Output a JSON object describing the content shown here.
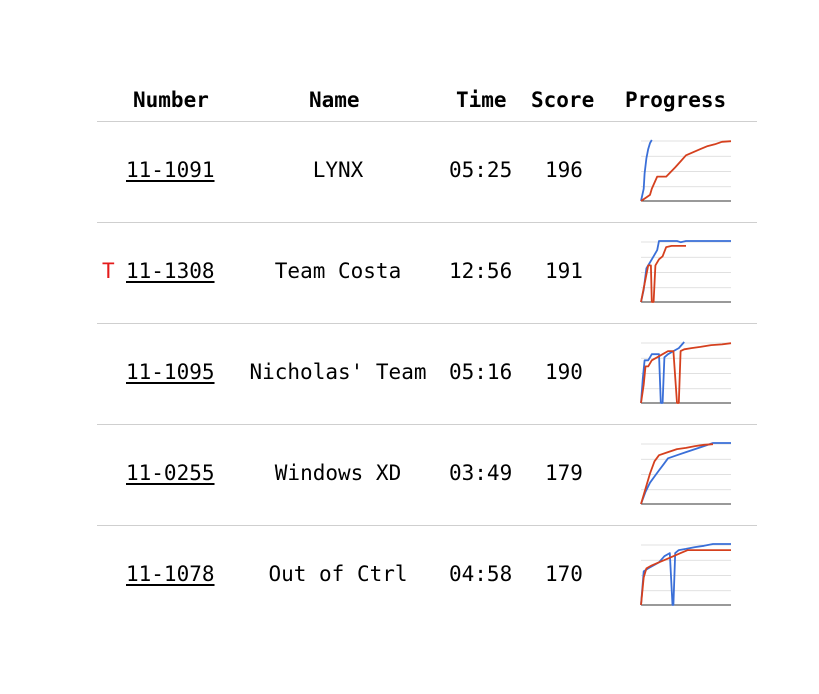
{
  "header": {
    "number": "Number",
    "name": "Name",
    "time": "Time",
    "score": "Score",
    "progress": "Progress"
  },
  "colors": {
    "series_a": "#3a6fd8",
    "series_b": "#d5401e",
    "flag": "#e41b1b",
    "grid": "#d6d6d6"
  },
  "rows": [
    {
      "flag": "",
      "number": "11-1091",
      "name": "LYNX",
      "time": "05:25",
      "score": "196"
    },
    {
      "flag": "T",
      "number": "11-1308",
      "name": "Team Costa",
      "time": "12:56",
      "score": "191"
    },
    {
      "flag": "",
      "number": "11-1095",
      "name": "Nicholas' Team",
      "time": "05:16",
      "score": "190"
    },
    {
      "flag": "",
      "number": "11-0255",
      "name": "Windows XD",
      "time": "03:49",
      "score": "179"
    },
    {
      "flag": "",
      "number": "11-1078",
      "name": "Out of Ctrl",
      "time": "04:58",
      "score": "170"
    }
  ],
  "chart_data": [
    {
      "type": "line",
      "ylim": [
        0,
        100
      ],
      "series": [
        {
          "x": [
            0,
            3,
            4,
            6,
            8,
            10,
            12
          ],
          "y": [
            0,
            20,
            45,
            70,
            85,
            95,
            100
          ]
        },
        {
          "x": [
            0,
            5,
            10,
            12,
            18,
            28,
            38,
            44,
            50,
            58,
            66,
            74,
            82,
            90,
            100
          ],
          "y": [
            0,
            5,
            10,
            20,
            40,
            40,
            55,
            65,
            75,
            80,
            85,
            90,
            93,
            97,
            98
          ]
        }
      ]
    },
    {
      "type": "line",
      "ylim": [
        0,
        100
      ],
      "series": [
        {
          "x": [
            0,
            3,
            6,
            10,
            14,
            18,
            20,
            40,
            44,
            50,
            100
          ],
          "y": [
            0,
            20,
            55,
            65,
            75,
            85,
            100,
            100,
            98,
            100,
            100
          ]
        },
        {
          "x": [
            0,
            4,
            8,
            11,
            12,
            14,
            16,
            20,
            24,
            28,
            34,
            42,
            50
          ],
          "y": [
            0,
            30,
            60,
            60,
            0,
            0,
            60,
            70,
            75,
            90,
            92,
            92,
            92
          ]
        }
      ]
    },
    {
      "type": "line",
      "ylim": [
        0,
        100
      ],
      "series": [
        {
          "x": [
            0,
            2,
            4,
            6,
            8,
            10,
            12,
            16,
            20,
            22,
            24,
            26,
            30,
            36,
            42,
            48
          ],
          "y": [
            0,
            40,
            70,
            70,
            70,
            75,
            80,
            80,
            80,
            0,
            0,
            75,
            80,
            85,
            90,
            100
          ]
        },
        {
          "x": [
            0,
            3,
            5,
            8,
            12,
            18,
            24,
            30,
            36,
            40,
            42,
            44,
            48,
            56,
            66,
            78,
            90,
            100
          ],
          "y": [
            0,
            30,
            60,
            60,
            70,
            75,
            80,
            85,
            85,
            0,
            0,
            85,
            88,
            90,
            92,
            95,
            96,
            98
          ]
        }
      ]
    },
    {
      "type": "line",
      "ylim": [
        0,
        100
      ],
      "series": [
        {
          "x": [
            0,
            5,
            10,
            15,
            20,
            25,
            30,
            40,
            50,
            60,
            70,
            80,
            100
          ],
          "y": [
            0,
            20,
            35,
            45,
            55,
            65,
            75,
            80,
            85,
            90,
            95,
            100,
            100
          ]
        },
        {
          "x": [
            0,
            5,
            10,
            15,
            20,
            30,
            40,
            50,
            60,
            70,
            80
          ],
          "y": [
            0,
            25,
            50,
            70,
            80,
            85,
            90,
            92,
            95,
            97,
            98
          ]
        }
      ]
    },
    {
      "type": "line",
      "ylim": [
        0,
        100
      ],
      "series": [
        {
          "x": [
            0,
            3,
            8,
            14,
            20,
            26,
            32,
            35,
            36,
            38,
            42,
            50,
            60,
            70,
            80,
            100
          ],
          "y": [
            0,
            55,
            60,
            65,
            70,
            80,
            85,
            0,
            0,
            85,
            90,
            92,
            95,
            97,
            100,
            100
          ]
        },
        {
          "x": [
            0,
            3,
            6,
            12,
            20,
            28,
            36,
            44,
            52,
            60,
            70,
            80,
            100
          ],
          "y": [
            0,
            45,
            60,
            65,
            70,
            75,
            80,
            85,
            90,
            90,
            90,
            90,
            90
          ]
        }
      ]
    }
  ]
}
